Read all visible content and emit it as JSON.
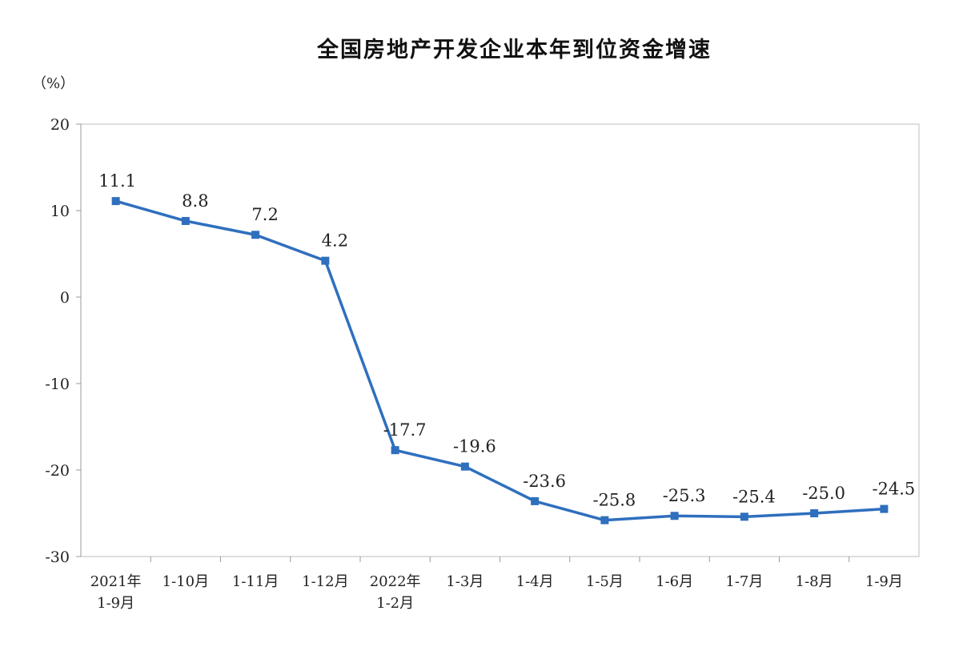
{
  "chart_data": {
    "type": "line",
    "title": "全国房地产开发企业本年到位资金增速",
    "unit_label": "（%）",
    "categories": [
      [
        "2021年",
        "1-9月"
      ],
      [
        "1-10月"
      ],
      [
        "1-11月"
      ],
      [
        "1-12月"
      ],
      [
        "2022年",
        "1-2月"
      ],
      [
        "1-3月"
      ],
      [
        "1-4月"
      ],
      [
        "1-5月"
      ],
      [
        "1-6月"
      ],
      [
        "1-7月"
      ],
      [
        "1-8月"
      ],
      [
        "1-9月"
      ]
    ],
    "values": [
      11.1,
      8.8,
      7.2,
      4.2,
      -17.7,
      -19.6,
      -23.6,
      -25.8,
      -25.3,
      -25.4,
      -25.0,
      -24.5
    ],
    "value_labels": [
      "11.1",
      "8.8",
      "7.2",
      "4.2",
      "-17.7",
      "-19.6",
      "-23.6",
      "-25.8",
      "-25.3",
      "-25.4",
      "-25.0",
      "-24.5"
    ],
    "ylim": [
      -30,
      20
    ],
    "yticks": [
      20,
      10,
      0,
      -10,
      -20,
      -30
    ],
    "series_color": "#2f6fbe",
    "grid": false,
    "legend": "none"
  }
}
